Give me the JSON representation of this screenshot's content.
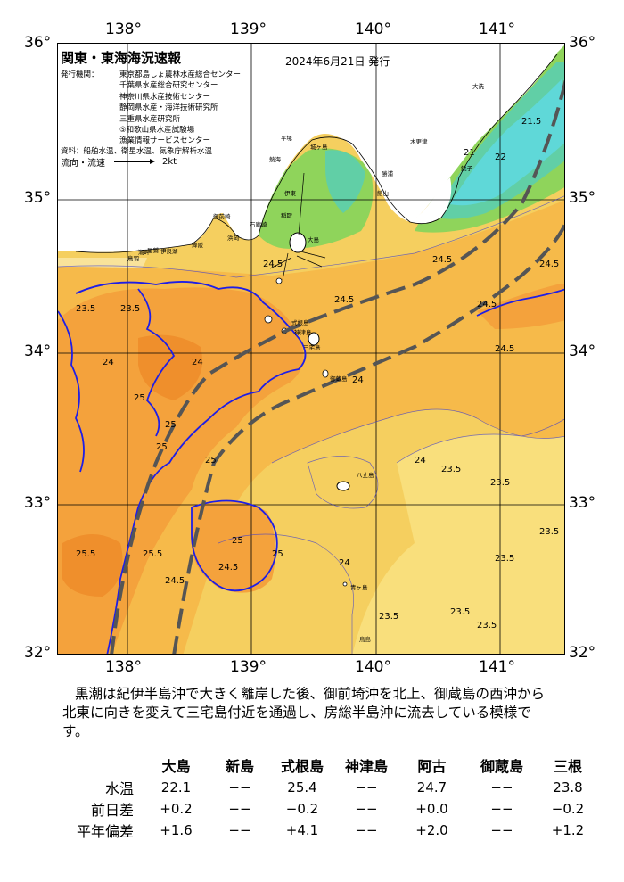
{
  "header": {
    "title": "関東・東海海況速報",
    "date": "2024年6月21日 発行"
  },
  "agencies": {
    "label": "発行機関：",
    "items": [
      "東京都島しょ農林水産総合センター",
      "千葉県水産総合研究センター",
      "神奈川県水産技術センター",
      "静岡県水産・海洋技術研究所",
      "三重県水産研究所",
      "⑤和歌山県水産試験場",
      "漁業情報サービスセンター"
    ]
  },
  "source": "資料：船舶水温、衛星水温、気象庁解析水温",
  "flow_legend": {
    "label": "流向・流速",
    "unit": "2kt"
  },
  "axes": {
    "lon_labels": [
      "138°",
      "139°",
      "140°",
      "141°"
    ],
    "lat_labels": [
      "36°",
      "35°",
      "34°",
      "33°",
      "32°"
    ]
  },
  "colors": {
    "warm_25": "#f4a23c",
    "warm_245": "#f6ba4a",
    "warm_24": "#f5cf5f",
    "land": "#ffffff",
    "cold_inner": "#5fd8d8",
    "cold_mid": "#61cfa6",
    "cold_outer": "#8fd45b",
    "contour_25": "#1e1ee6",
    "kuroshio_axis": "#555555"
  },
  "map": {
    "contour_labels": [
      "25",
      "25",
      "25",
      "25",
      "25",
      "25",
      "25.5",
      "25.5",
      "24.5",
      "24.5",
      "24.5",
      "24.5",
      "24.5",
      "24.5",
      "24.5",
      "24.5",
      "24",
      "24",
      "24",
      "24",
      "24",
      "23.5",
      "23.5",
      "23.5",
      "23.5",
      "23.5",
      "23.5",
      "23.5",
      "23.5",
      "23.5",
      "22",
      "21",
      "21.5"
    ],
    "places": [
      "大島",
      "式根島",
      "神津島",
      "三宅島",
      "御蔵島",
      "八丈島",
      "青ヶ島",
      "鳥島",
      "大洗",
      "木更津",
      "館山",
      "勝浦",
      "銚子",
      "平塚",
      "城ヶ島",
      "熱海",
      "伊東",
      "稲取",
      "石廊崎",
      "御前崎",
      "浜岡",
      "舞阪",
      "伊良湖",
      "鳥羽",
      "尾鷲",
      "潮岬"
    ]
  },
  "description": [
    "黒潮は紀伊半島沖で大きく離岸した後、御前埼沖を北上、御蔵島の西沖から",
    "北東に向きを変えて三宅島付近を通過し、房総半島沖に流去している模様で",
    "す。"
  ],
  "table": {
    "columns": [
      "大島",
      "新島",
      "式根島",
      "神津島",
      "阿古",
      "御蔵島",
      "三根"
    ],
    "rows": [
      {
        "label": "水温",
        "values": [
          "22.1",
          "−−",
          "25.4",
          "−−",
          "24.7",
          "−−",
          "23.8"
        ]
      },
      {
        "label": "前日差",
        "values": [
          "+0.2",
          "−−",
          "−0.2",
          "−−",
          "+0.0",
          "−−",
          "−0.2"
        ]
      },
      {
        "label": "平年偏差",
        "values": [
          "+1.6",
          "−−",
          "+4.1",
          "−−",
          "+2.0",
          "−−",
          "+1.2"
        ]
      }
    ]
  }
}
